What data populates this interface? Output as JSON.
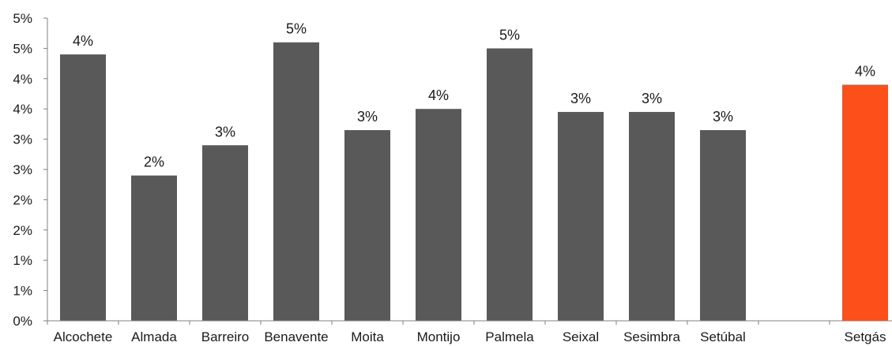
{
  "chart_data": {
    "type": "bar",
    "title": "",
    "xlabel": "",
    "ylabel": "",
    "ylim": [
      0,
      5
    ],
    "y_tick_values": [
      0,
      0.5,
      1,
      1.5,
      2,
      2.5,
      3,
      3.5,
      4,
      4.5,
      5
    ],
    "y_tick_labels": [
      "0%",
      "1%",
      "1%",
      "2%",
      "2%",
      "3%",
      "3%",
      "4%",
      "4%",
      "5%",
      "5%"
    ],
    "grid": false,
    "legend": "none",
    "categories": [
      "Alcochete",
      "Almada",
      "Barreiro",
      "Benavente",
      "Moita",
      "Montijo",
      "Palmela",
      "Seixal",
      "Sesimbra",
      "Setúbal",
      "",
      "Setgás"
    ],
    "values": [
      4.4,
      2.4,
      2.9,
      4.6,
      3.15,
      3.5,
      4.5,
      3.45,
      3.45,
      3.15,
      null,
      3.9
    ],
    "data_labels": [
      "4%",
      "2%",
      "3%",
      "5%",
      "3%",
      "4%",
      "5%",
      "3%",
      "3%",
      "3%",
      "",
      "4%"
    ],
    "colors": {
      "default": "#595959",
      "highlight": "#fc4f1a",
      "highlight_category": "Setgás",
      "axis": "#808080"
    }
  }
}
